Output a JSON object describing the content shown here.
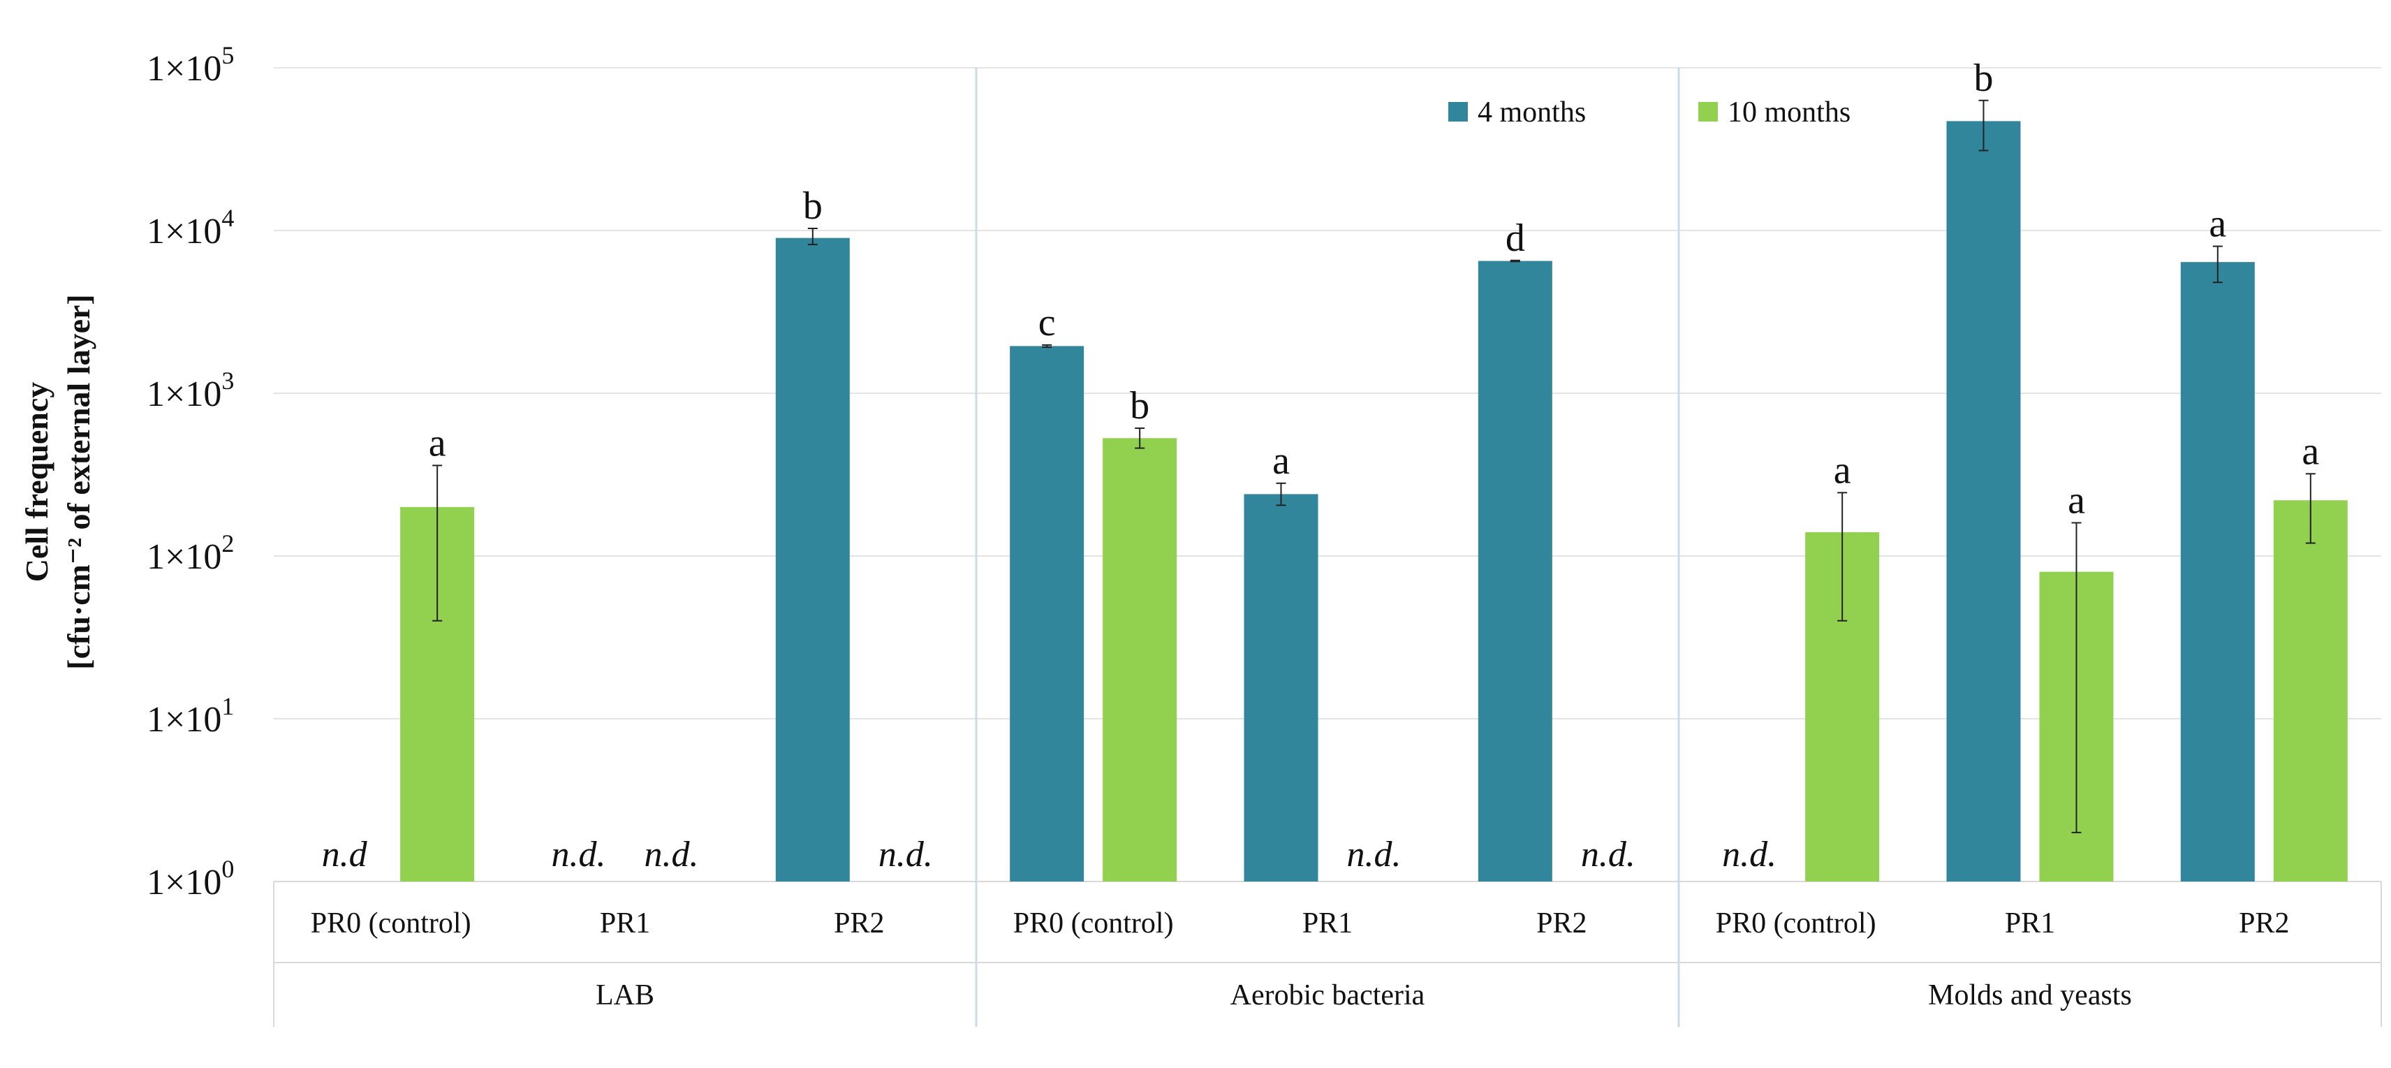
{
  "chart_data": {
    "type": "bar",
    "y_scale": "log",
    "ylim": [
      1,
      100000
    ],
    "y_ticks": [
      {
        "base": "1×10",
        "exp": "0"
      },
      {
        "base": "1×10",
        "exp": "1"
      },
      {
        "base": "1×10",
        "exp": "2"
      },
      {
        "base": "1×10",
        "exp": "3"
      },
      {
        "base": "1×10",
        "exp": "4"
      },
      {
        "base": "1×10",
        "exp": "5"
      }
    ],
    "ylabel_line1": "Cell frequency",
    "ylabel_line2": "[cfu·cm⁻² of external layer]",
    "xlabel": "",
    "title": "",
    "grid": true,
    "legend_position": "top-right",
    "series": [
      {
        "name": "4 months",
        "color": "#31869B"
      },
      {
        "name": "10 months",
        "color": "#92D050"
      }
    ],
    "groups": [
      {
        "name": "LAB",
        "categories": [
          {
            "name": "PR0 (control)",
            "bars": [
              {
                "value": null,
                "nd_label": "n.d"
              },
              {
                "value": 200,
                "err_low": 40,
                "err_high": 360,
                "sig": "a"
              }
            ]
          },
          {
            "name": "PR1",
            "bars": [
              {
                "value": null,
                "nd_label": "n.d."
              },
              {
                "value": null,
                "nd_label": "n.d."
              }
            ]
          },
          {
            "name": "PR2",
            "bars": [
              {
                "value": 9000,
                "err_low": 8200,
                "err_high": 10300,
                "sig": "b"
              },
              {
                "value": null,
                "nd_label": "n.d."
              }
            ]
          }
        ]
      },
      {
        "name": "Aerobic bacteria",
        "categories": [
          {
            "name": "PR0 (control)",
            "bars": [
              {
                "value": 1950,
                "err_low": 1920,
                "err_high": 1980,
                "sig": "c"
              },
              {
                "value": 530,
                "err_low": 460,
                "err_high": 610,
                "sig": "b"
              }
            ]
          },
          {
            "name": "PR1",
            "bars": [
              {
                "value": 240,
                "err_low": 205,
                "err_high": 280,
                "sig": "a"
              },
              {
                "value": null,
                "nd_label": "n.d."
              }
            ]
          },
          {
            "name": "PR2",
            "bars": [
              {
                "value": 6500,
                "err_low": 6450,
                "err_high": 6550,
                "sig": "d"
              },
              {
                "value": null,
                "nd_label": "n.d."
              }
            ]
          }
        ]
      },
      {
        "name": "Molds and yeasts",
        "categories": [
          {
            "name": "PR0 (control)",
            "bars": [
              {
                "value": null,
                "nd_label": "n.d."
              },
              {
                "value": 140,
                "err_low": 40,
                "err_high": 245,
                "sig": "a"
              }
            ]
          },
          {
            "name": "PR1",
            "bars": [
              {
                "value": 47000,
                "err_low": 31000,
                "err_high": 63000,
                "sig": "b"
              },
              {
                "value": 80,
                "err_low": 2,
                "err_high": 160,
                "sig": "a"
              }
            ]
          },
          {
            "name": "PR2",
            "bars": [
              {
                "value": 6400,
                "err_low": 4800,
                "err_high": 8000,
                "sig": "a"
              },
              {
                "value": 220,
                "err_low": 120,
                "err_high": 320,
                "sig": "a"
              }
            ]
          }
        ]
      }
    ]
  }
}
